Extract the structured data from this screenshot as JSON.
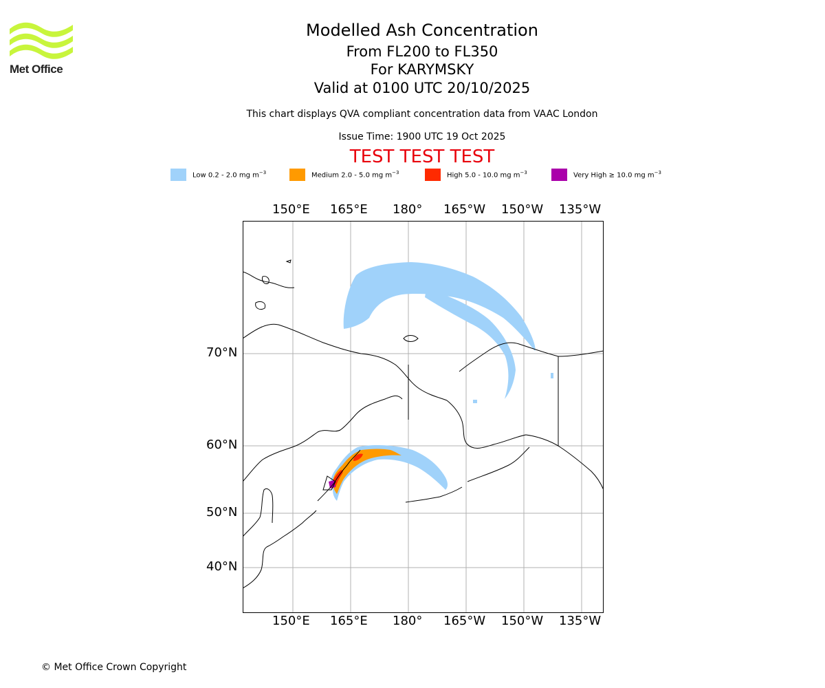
{
  "logo": {
    "text": "Met Office",
    "wave_color": "#c8f53c"
  },
  "title": {
    "main": "Modelled Ash Concentration",
    "levels": "From FL200 to FL350",
    "volcano": "For KARYMSKY",
    "valid": "Valid at 0100 UTC 20/10/2025"
  },
  "subtitle": "This chart displays QVA compliant concentration data from VAAC London",
  "issue_time": "Issue Time: 1900 UTC 19 Oct 2025",
  "banner": "TEST TEST TEST",
  "legend": [
    {
      "name": "Low",
      "range": "0.2 - 2.0 mg m",
      "color": "#a0d2fa"
    },
    {
      "name": "Medium",
      "range": "2.0 - 5.0 mg m",
      "color": "#ff9a00"
    },
    {
      "name": "High",
      "range": "5.0 - 10.0 mg m",
      "color": "#ff2a00"
    },
    {
      "name": "Very High",
      "range": "≥ 10.0 mg m",
      "color": "#aa00aa"
    }
  ],
  "legend_exponent": "−3",
  "map": {
    "lon_ticks": [
      "150°E",
      "165°E",
      "180°",
      "165°W",
      "150°W",
      "135°W"
    ],
    "lat_ticks": [
      "70°N",
      "60°N",
      "50°N",
      "40°N"
    ],
    "grid_color": "#b0b0b0"
  },
  "copyright": "© Met Office Crown Copyright"
}
